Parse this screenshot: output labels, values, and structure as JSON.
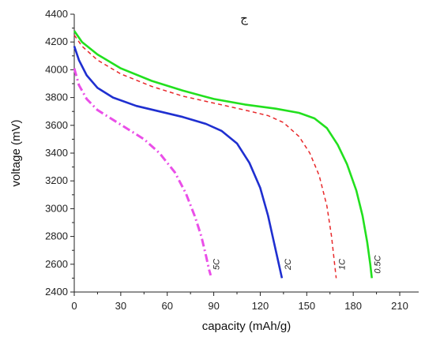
{
  "chart_data": {
    "type": "line",
    "title": "ج",
    "xlabel": "capacity (mAh/g)",
    "ylabel": "voltage (mV)",
    "xlim": [
      0,
      225
    ],
    "ylim": [
      2400,
      4400
    ],
    "xticks": [
      0,
      30,
      60,
      90,
      120,
      150,
      180,
      210
    ],
    "yticks": [
      2400,
      2600,
      2800,
      3000,
      3200,
      3400,
      3600,
      3800,
      4000,
      4200,
      4400
    ],
    "grid": false,
    "legend": "none",
    "series": [
      {
        "name": "0.5C",
        "color": "#22e01e",
        "dash": "solid",
        "x": [
          0,
          5,
          15,
          30,
          50,
          70,
          90,
          110,
          130,
          145,
          155,
          163,
          170,
          176,
          182,
          186,
          189,
          191,
          192
        ],
        "y": [
          4280,
          4200,
          4110,
          4010,
          3920,
          3850,
          3790,
          3750,
          3720,
          3690,
          3650,
          3580,
          3460,
          3320,
          3130,
          2950,
          2760,
          2600,
          2500
        ]
      },
      {
        "name": "1C",
        "color": "#e8282a",
        "dash": "dashed",
        "x": [
          0,
          5,
          15,
          30,
          50,
          70,
          90,
          110,
          125,
          135,
          145,
          152,
          158,
          163,
          166,
          168,
          169
        ],
        "y": [
          4250,
          4170,
          4070,
          3970,
          3880,
          3810,
          3760,
          3710,
          3670,
          3620,
          3520,
          3400,
          3240,
          3020,
          2800,
          2600,
          2500
        ]
      },
      {
        "name": "2C",
        "color": "#1f2fd0",
        "dash": "solid",
        "x": [
          0,
          3,
          8,
          15,
          25,
          40,
          55,
          70,
          85,
          95,
          105,
          113,
          120,
          125,
          129,
          132,
          134
        ],
        "y": [
          4170,
          4070,
          3960,
          3870,
          3800,
          3740,
          3700,
          3660,
          3610,
          3560,
          3470,
          3330,
          3150,
          2950,
          2750,
          2600,
          2500
        ]
      },
      {
        "name": "5C",
        "color": "#ea4fe8",
        "dash": "dashdot",
        "x": [
          0,
          3,
          8,
          15,
          25,
          35,
          45,
          55,
          65,
          72,
          78,
          82,
          85,
          87,
          88
        ],
        "y": [
          4010,
          3890,
          3790,
          3710,
          3640,
          3570,
          3500,
          3400,
          3260,
          3110,
          2940,
          2800,
          2660,
          2560,
          2520
        ]
      }
    ],
    "series_labels": [
      "0.5C",
      "1C",
      "2C",
      "5C"
    ]
  }
}
